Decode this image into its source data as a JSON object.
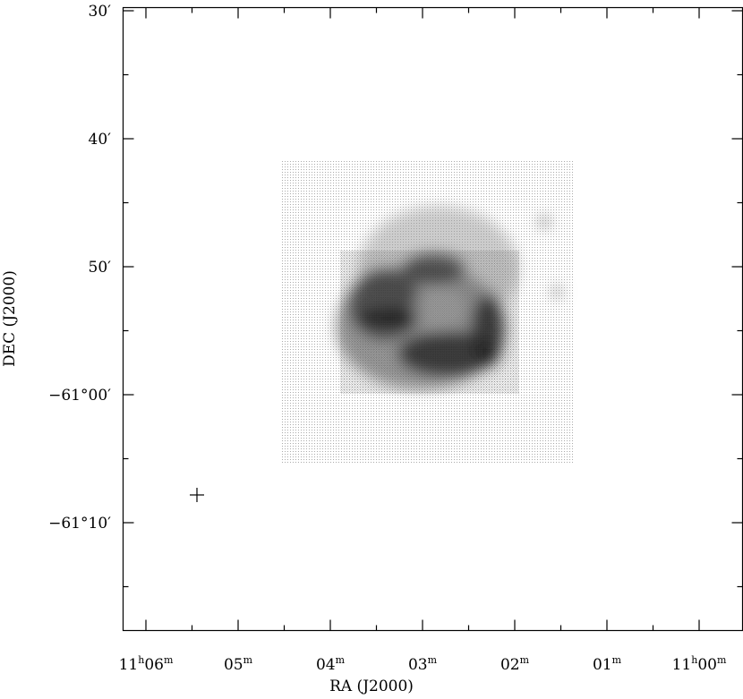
{
  "figure": {
    "x_label": "RA (J2000)",
    "y_label": "DEC (J2000)",
    "x_ticks": [
      [
        "11",
        "h",
        "06",
        "m"
      ],
      [
        "05",
        "m"
      ],
      [
        "04",
        "m"
      ],
      [
        "03",
        "m"
      ],
      [
        "02",
        "m"
      ],
      [
        "01",
        "m"
      ],
      [
        "11",
        "h",
        "00",
        "m"
      ]
    ],
    "y_ticks": [
      "30′",
      "40′",
      "50′",
      "−61°00′",
      "−61°10′"
    ]
  }
}
